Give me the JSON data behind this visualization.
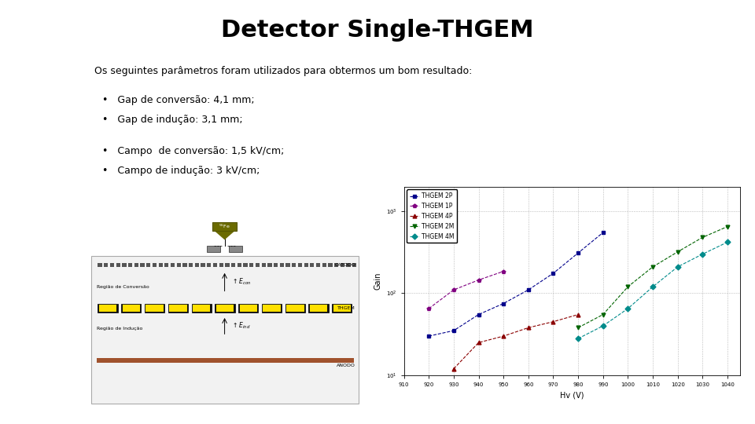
{
  "title": "Detector Single-THGEM",
  "subtitle": "Os seguintes parâmetros foram utilizados para obtermos um bom resultado:",
  "bullets": [
    "Gap de conversão: 4,1 mm;",
    "Gap de indução: 3,1 mm;",
    "Campo  de conversão: 1,5 kV/cm;",
    "Campo de indução: 3 kV/cm;"
  ],
  "background_color": "#ffffff",
  "title_fontsize": 22,
  "subtitle_fontsize": 9,
  "bullet_fontsize": 9,
  "plot_xlabel": "Hv (V)",
  "plot_ylabel": "Gain",
  "plot_xticks": [
    910,
    920,
    930,
    940,
    950,
    960,
    970,
    980,
    990,
    1000,
    1010,
    1020,
    1030,
    1040
  ],
  "series": [
    {
      "label": "THGEM 2P",
      "color": "#00008B",
      "marker": "s",
      "x": [
        920,
        930,
        940,
        950,
        960,
        970,
        980,
        990
      ],
      "y": [
        30,
        35,
        55,
        75,
        110,
        175,
        310,
        550
      ]
    },
    {
      "label": "THGEM 1P",
      "color": "#800080",
      "marker": "p",
      "x": [
        920,
        930,
        940,
        950
      ],
      "y": [
        65,
        110,
        145,
        185
      ]
    },
    {
      "label": "THGEM 4P",
      "color": "#8B0000",
      "marker": "^",
      "x": [
        930,
        940,
        950,
        960,
        970,
        980
      ],
      "y": [
        12,
        25,
        30,
        38,
        45,
        55
      ]
    },
    {
      "label": "THGEM 2M",
      "color": "#006400",
      "marker": "v",
      "x": [
        980,
        990,
        1000,
        1010,
        1020,
        1030,
        1040
      ],
      "y": [
        38,
        55,
        120,
        210,
        320,
        480,
        650
      ]
    },
    {
      "label": "THGEM 4M",
      "color": "#008B8B",
      "marker": "D",
      "x": [
        980,
        990,
        1000,
        1010,
        1020,
        1030,
        1040
      ],
      "y": [
        28,
        40,
        65,
        120,
        210,
        300,
        420
      ]
    }
  ]
}
